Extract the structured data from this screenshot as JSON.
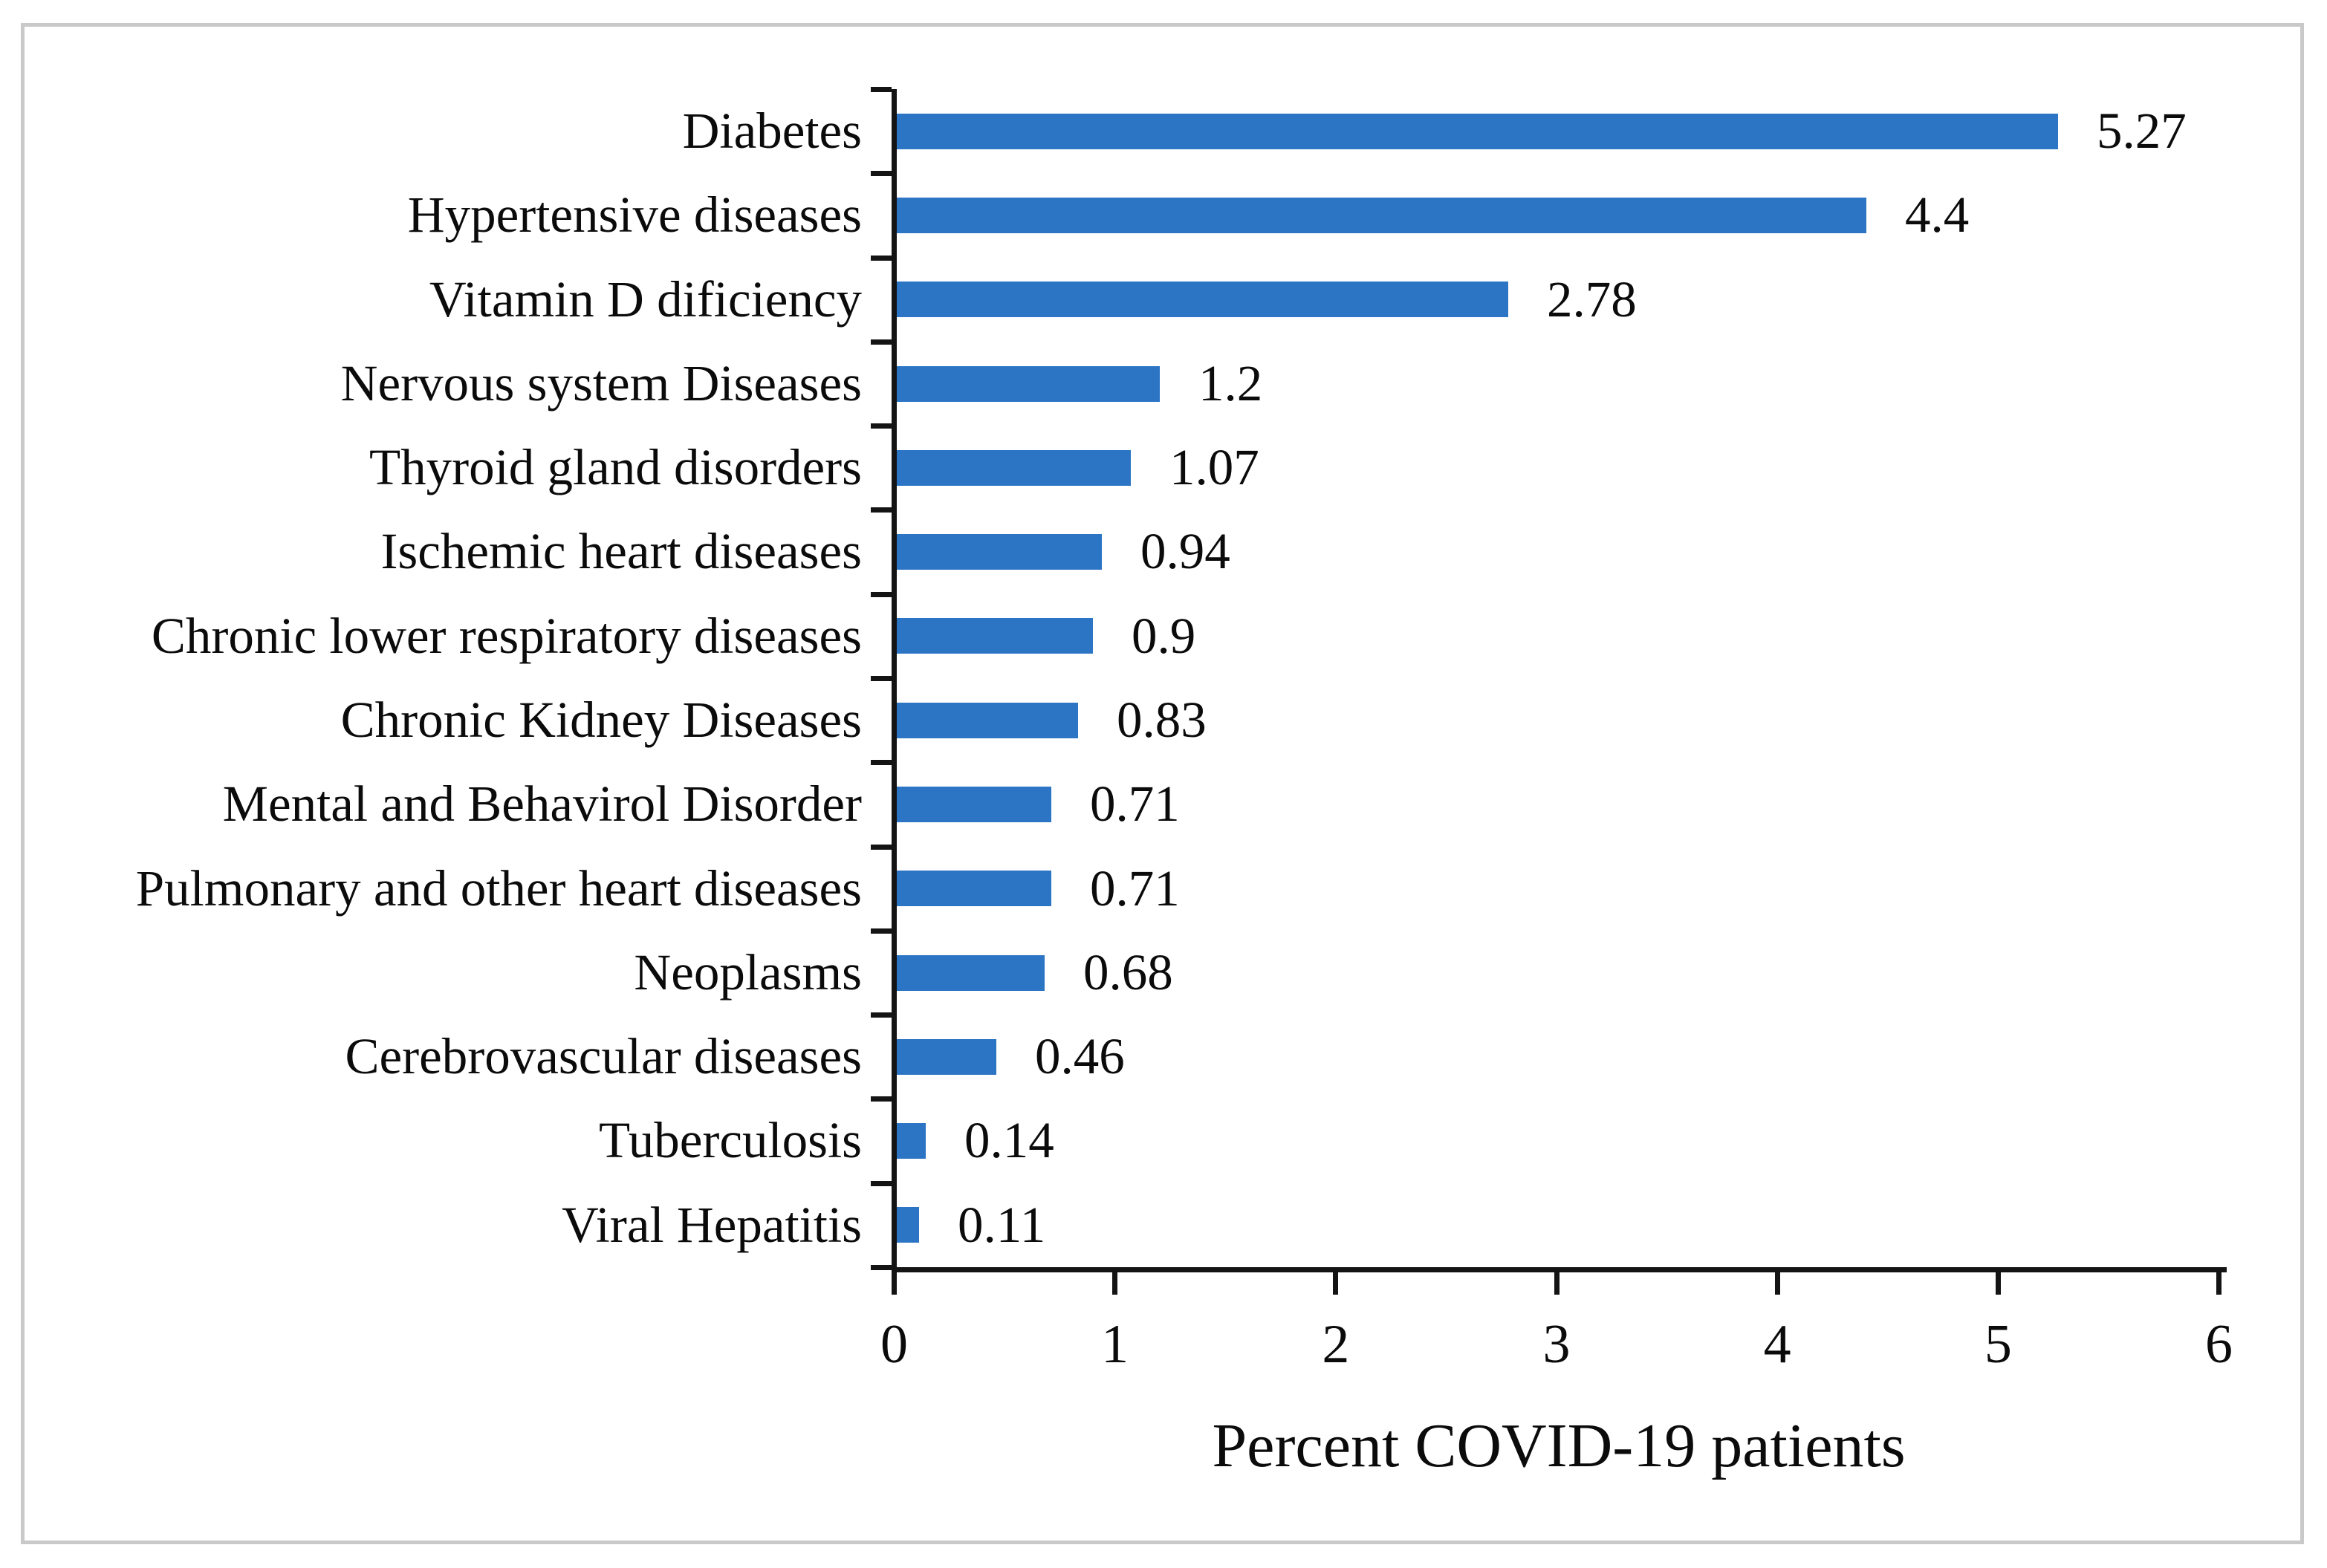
{
  "chart_data": {
    "type": "bar",
    "orientation": "horizontal",
    "title": "",
    "xlabel": "Percent COVID-19 patients",
    "ylabel": "",
    "categories": [
      "Diabetes",
      "Hypertensive diseases",
      "Vitamin D dificiency",
      "Nervous system Diseases",
      "Thyroid gland disorders",
      "Ischemic heart diseases",
      "Chronic lower respiratory diseases",
      "Chronic Kidney Diseases",
      "Mental and Behavirol Disorder",
      "Pulmonary and other heart diseases",
      "Neoplasms",
      "Cerebrovascular diseases",
      "Tuberculosis",
      "Viral Hepatitis"
    ],
    "values": [
      5.27,
      4.4,
      2.78,
      1.2,
      1.07,
      0.94,
      0.9,
      0.83,
      0.71,
      0.71,
      0.68,
      0.46,
      0.14,
      0.11
    ],
    "value_labels": [
      "5.27",
      "4.4",
      "2.78",
      "1.2",
      "1.07",
      "0.94",
      "0.9",
      "0.83",
      "0.71",
      "0.71",
      "0.68",
      "0.46",
      "0.14",
      "0.11"
    ],
    "xlim": [
      0,
      6
    ],
    "x_ticks": [
      "0",
      "1",
      "2",
      "3",
      "4",
      "5",
      "6"
    ],
    "grid": false,
    "legend": false,
    "colors": {
      "bar": "#2c74c4",
      "axis": "#141414",
      "text": "#0b0b0b",
      "frame_border": "#c9c9c9",
      "background": "#ffffff"
    }
  }
}
